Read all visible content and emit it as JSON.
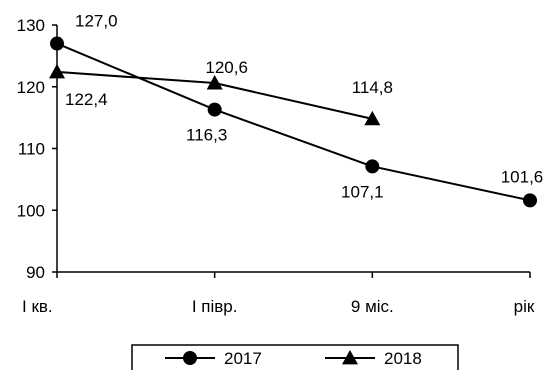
{
  "chart_data": {
    "type": "line",
    "categories": [
      "І кв.",
      "І півр.",
      "9 міс.",
      "рік"
    ],
    "ylim": [
      90,
      130
    ],
    "yticks": [
      "90",
      "100",
      "110",
      "120",
      "130"
    ],
    "series": [
      {
        "name": "2017",
        "marker": "circle",
        "values": [
          127.0,
          116.3,
          107.1,
          101.6
        ],
        "labels": [
          "127,0",
          "116,3",
          "107,1",
          "101,6"
        ]
      },
      {
        "name": "2018",
        "marker": "triangle",
        "values": [
          122.4,
          120.6,
          114.8,
          null
        ],
        "labels": [
          "122,4",
          "120,6",
          "114,8",
          null
        ]
      }
    ],
    "legend": "bottom",
    "grid": false,
    "colors": {
      "line": "#000000"
    }
  }
}
